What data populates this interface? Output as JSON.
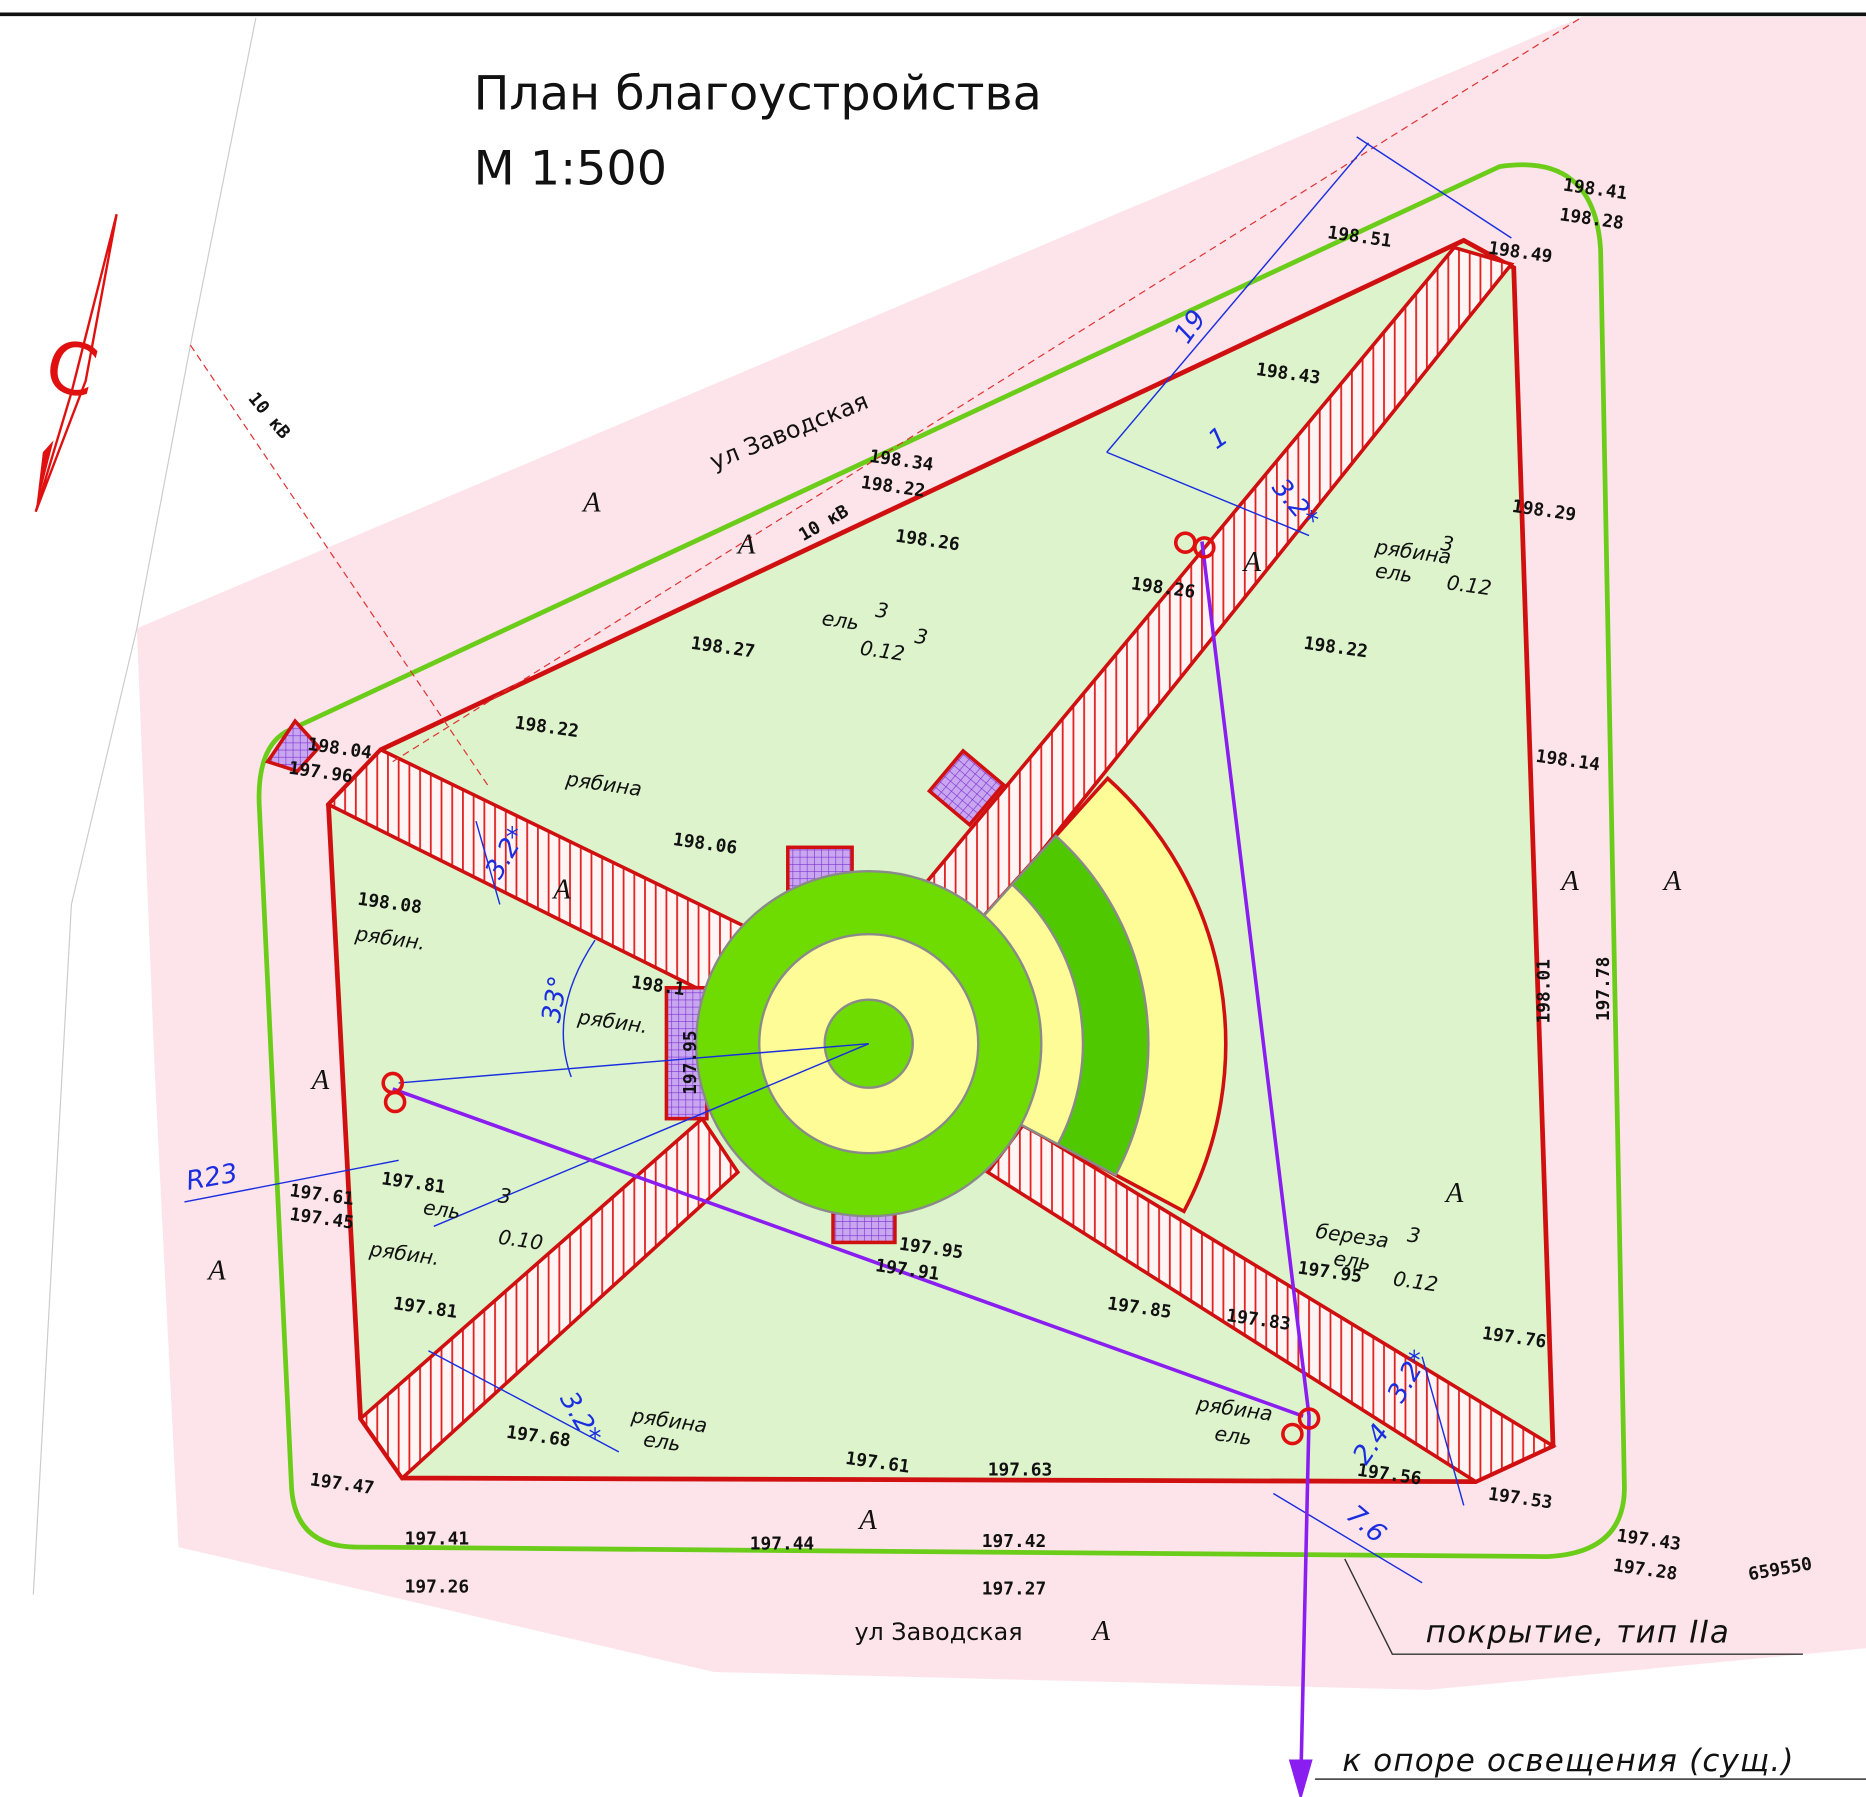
{
  "title": "План благоустройства",
  "scale": "М 1:500",
  "north": "С",
  "streets": [
    "ул Заводская",
    "ул Заводская"
  ],
  "power_lines": [
    "10 кВ",
    "10 кВ"
  ],
  "zone_labels": [
    "А",
    "А",
    "А",
    "А",
    "А",
    "А",
    "А",
    "А",
    "А",
    "А",
    "А"
  ],
  "elevations": [
    "198.41",
    "198.28",
    "198.51",
    "198.49",
    "198.43",
    "198.34",
    "198.22",
    "198.26",
    "198.29",
    "198.26",
    "198.22",
    "198.27",
    "198.22",
    "198.04",
    "197.96",
    "198.14",
    "198.06",
    "198.08",
    "198.01",
    "197.78",
    "198.1",
    "197.95",
    "197.81",
    "197.61",
    "197.45",
    "197.95",
    "197.91",
    "197.81",
    "197.95",
    "197.85",
    "197.83",
    "197.76",
    "197.68",
    "197.61",
    "197.63",
    "197.56",
    "197.47",
    "197.53",
    "197.41",
    "197.44",
    "197.42",
    "197.43",
    "197.28",
    "197.26",
    "197.27"
  ],
  "tree_labels": [
    "рябина",
    "3",
    "ель",
    "0.12",
    "ель",
    "3",
    "0.12",
    "3",
    "рябина",
    "рябин.",
    "рябин.",
    "ель",
    "3",
    "0.10",
    "рябин.",
    "береза",
    "3",
    "ель",
    "0.12",
    "рябина",
    "ель",
    "рябина",
    "ель"
  ],
  "dimensions": [
    "19",
    "1",
    "3.2*",
    "3.2*",
    "33°",
    "R23",
    "3.2*",
    "2.4",
    "3.2*",
    "7.6"
  ],
  "callouts": [
    "покрытие, тип IIа",
    "к опоре освещения (сущ.)"
  ],
  "coordinate": "659550"
}
